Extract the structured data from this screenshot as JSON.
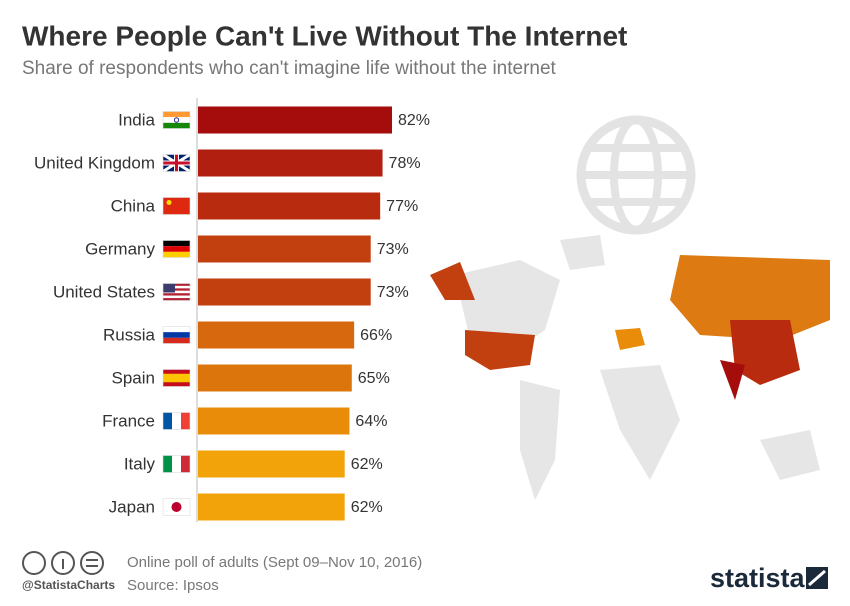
{
  "chart_data": {
    "type": "bar",
    "orientation": "horizontal",
    "title": "Where People Can't Live Without The Internet",
    "subtitle": "Share of respondents who can't imagine life without the internet",
    "categories": [
      "India",
      "United Kingdom",
      "China",
      "Germany",
      "United States",
      "Russia",
      "Spain",
      "France",
      "Italy",
      "Japan"
    ],
    "values": [
      82,
      78,
      77,
      73,
      73,
      66,
      65,
      64,
      62,
      62
    ],
    "value_labels": [
      "82%",
      "78%",
      "77%",
      "73%",
      "73%",
      "66%",
      "65%",
      "64%",
      "62%",
      "62%"
    ],
    "colors": [
      "#a50d0d",
      "#b01f10",
      "#b92b0e",
      "#c23f10",
      "#c23f10",
      "#d8680e",
      "#dc760c",
      "#e88c0a",
      "#f2a30a",
      "#f2a30a"
    ],
    "note": "Online poll of adults (Sept 09–Nov 10, 2016)",
    "source": "Source: Ipsos",
    "credit": "@StatistaCharts",
    "brand": "statista"
  }
}
